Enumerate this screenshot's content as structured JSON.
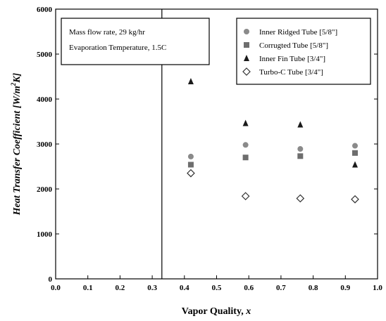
{
  "chart_data": {
    "type": "scatter",
    "title": "",
    "xlabel_main": "Vapor Quality, ",
    "xlabel_var": "x",
    "ylabel_main": "Heat Transfer Coefficient [W/m",
    "ylabel_sup": "2",
    "ylabel_end": "K]",
    "xlim": [
      0.0,
      1.0
    ],
    "ylim": [
      0,
      6000
    ],
    "xticks": [
      {
        "value": 0.0,
        "label": "0.0"
      },
      {
        "value": 0.1,
        "label": "0.1"
      },
      {
        "value": 0.2,
        "label": "0.2"
      },
      {
        "value": 0.3,
        "label": "0.3"
      },
      {
        "value": 0.4,
        "label": "0.4"
      },
      {
        "value": 0.5,
        "label": "0.5"
      },
      {
        "value": 0.6,
        "label": "0.6"
      },
      {
        "value": 0.7,
        "label": "0.7"
      },
      {
        "value": 0.8,
        "label": "0.8"
      },
      {
        "value": 0.9,
        "label": "0.9"
      },
      {
        "value": 1.0,
        "label": "1.0"
      }
    ],
    "yticks": [
      {
        "value": 0,
        "label": "0"
      },
      {
        "value": 1000,
        "label": "1000"
      },
      {
        "value": 2000,
        "label": "2000"
      },
      {
        "value": 3000,
        "label": "3000"
      },
      {
        "value": 4000,
        "label": "4000"
      },
      {
        "value": 5000,
        "label": "5000"
      },
      {
        "value": 6000,
        "label": "6000"
      }
    ],
    "vertical_line_x": 0.33,
    "annotation": {
      "lines": [
        "Mass flow rate, 29 kg/hr",
        "Evaporation Temperature, 1.5C"
      ]
    },
    "legend_position": "top-right",
    "series": [
      {
        "name": "Inner Ridged Tube [5/8\"]",
        "marker": "circle",
        "color": "#8a8a8a",
        "x": [
          0.42,
          0.59,
          0.76,
          0.93
        ],
        "y": [
          2720,
          2980,
          2890,
          2960
        ]
      },
      {
        "name": "Corrugted Tube [5/8\"]",
        "marker": "square",
        "color": "#6e6e6e",
        "x": [
          0.42,
          0.59,
          0.76,
          0.93
        ],
        "y": [
          2540,
          2700,
          2730,
          2800
        ]
      },
      {
        "name": "Inner Fin Tube [3/4\"]",
        "marker": "triangle",
        "color": "#1a1a1a",
        "x": [
          0.42,
          0.59,
          0.76,
          0.93
        ],
        "y": [
          4390,
          3460,
          3430,
          2540
        ]
      },
      {
        "name": "Turbo-C Tube [3/4\"]",
        "marker": "diamond",
        "color": "#333333",
        "x": [
          0.42,
          0.59,
          0.76,
          0.93
        ],
        "y": [
          2350,
          1840,
          1790,
          1770
        ]
      }
    ]
  }
}
